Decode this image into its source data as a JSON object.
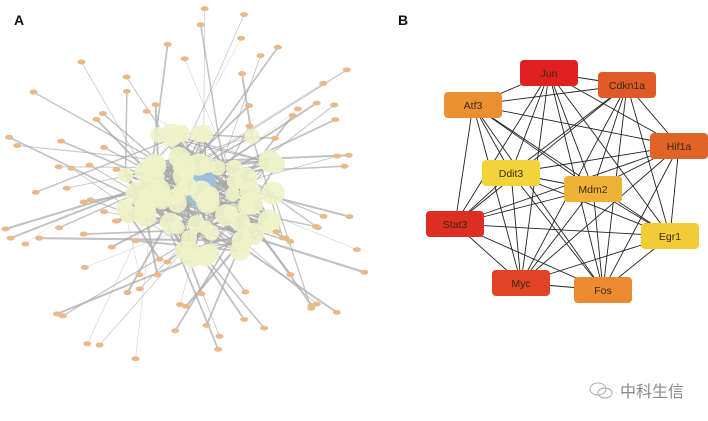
{
  "panels": {
    "a_label": "A",
    "b_label": "B"
  },
  "watermark": {
    "text": "中科生信",
    "icon": "wechat-icon"
  },
  "network_a": {
    "colors": {
      "hub": "#9dbfd9",
      "inner_node": "#eef3c8",
      "outer_node": "#eab98a",
      "edge": "#a8a8a8"
    }
  },
  "network_b": {
    "edge_color": "#222222",
    "nodes": [
      {
        "id": "Jun",
        "color": "#e02020"
      },
      {
        "id": "Cdkn1a",
        "color": "#e05a28"
      },
      {
        "id": "Atf3",
        "color": "#eb9030"
      },
      {
        "id": "Hif1a",
        "color": "#e06428"
      },
      {
        "id": "Ddit3",
        "color": "#f2d43a"
      },
      {
        "id": "Mdm2",
        "color": "#eeb236"
      },
      {
        "id": "Stat3",
        "color": "#dc2e22"
      },
      {
        "id": "Egr1",
        "color": "#f2cc36"
      },
      {
        "id": "Myc",
        "color": "#e04424"
      },
      {
        "id": "Fos",
        "color": "#ec8a32"
      }
    ],
    "edges": [
      [
        "Jun",
        "Cdkn1a"
      ],
      [
        "Jun",
        "Atf3"
      ],
      [
        "Jun",
        "Hif1a"
      ],
      [
        "Jun",
        "Ddit3"
      ],
      [
        "Jun",
        "Mdm2"
      ],
      [
        "Jun",
        "Stat3"
      ],
      [
        "Jun",
        "Egr1"
      ],
      [
        "Jun",
        "Myc"
      ],
      [
        "Jun",
        "Fos"
      ],
      [
        "Cdkn1a",
        "Atf3"
      ],
      [
        "Cdkn1a",
        "Hif1a"
      ],
      [
        "Cdkn1a",
        "Ddit3"
      ],
      [
        "Cdkn1a",
        "Mdm2"
      ],
      [
        "Cdkn1a",
        "Stat3"
      ],
      [
        "Cdkn1a",
        "Egr1"
      ],
      [
        "Cdkn1a",
        "Myc"
      ],
      [
        "Cdkn1a",
        "Fos"
      ],
      [
        "Atf3",
        "Hif1a"
      ],
      [
        "Atf3",
        "Ddit3"
      ],
      [
        "Atf3",
        "Mdm2"
      ],
      [
        "Atf3",
        "Stat3"
      ],
      [
        "Atf3",
        "Egr1"
      ],
      [
        "Atf3",
        "Myc"
      ],
      [
        "Atf3",
        "Fos"
      ],
      [
        "Hif1a",
        "Ddit3"
      ],
      [
        "Hif1a",
        "Mdm2"
      ],
      [
        "Hif1a",
        "Stat3"
      ],
      [
        "Hif1a",
        "Egr1"
      ],
      [
        "Hif1a",
        "Myc"
      ],
      [
        "Hif1a",
        "Fos"
      ],
      [
        "Ddit3",
        "Mdm2"
      ],
      [
        "Ddit3",
        "Stat3"
      ],
      [
        "Ddit3",
        "Egr1"
      ],
      [
        "Ddit3",
        "Myc"
      ],
      [
        "Ddit3",
        "Fos"
      ],
      [
        "Mdm2",
        "Stat3"
      ],
      [
        "Mdm2",
        "Egr1"
      ],
      [
        "Mdm2",
        "Myc"
      ],
      [
        "Mdm2",
        "Fos"
      ],
      [
        "Stat3",
        "Egr1"
      ],
      [
        "Stat3",
        "Myc"
      ],
      [
        "Stat3",
        "Fos"
      ],
      [
        "Egr1",
        "Myc"
      ],
      [
        "Egr1",
        "Fos"
      ],
      [
        "Myc",
        "Fos"
      ]
    ]
  }
}
